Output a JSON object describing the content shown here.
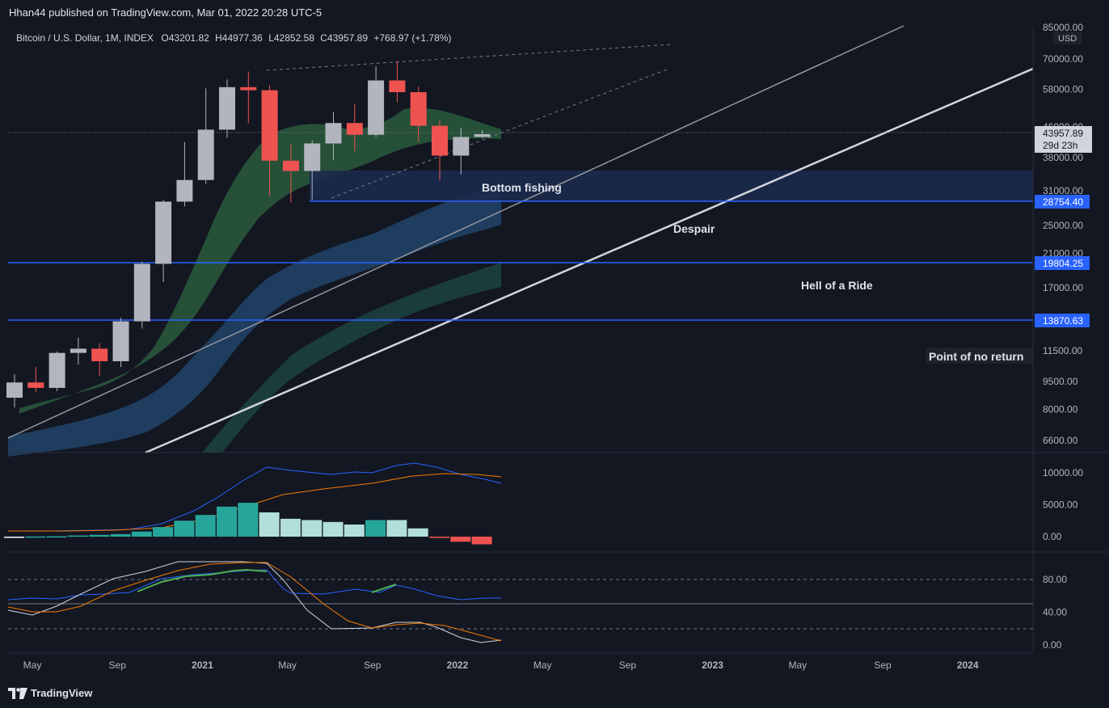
{
  "header": {
    "publisher": "Hhan44 published on TradingView.com, Mar 01, 2022 20:28 UTC-5"
  },
  "footer": {
    "logo_text": "TradingView"
  },
  "chart_data": {
    "type": "candlestick",
    "legend": {
      "symbol": "Bitcoin / U.S. Dollar, 1M, INDEX",
      "open": "O43201.82",
      "high": "H44977.36",
      "low": "L42852.58",
      "close": "C43957.89",
      "change": "+768.97 (+1.78%)"
    },
    "currency_label": "USD",
    "price_axis_ticks": [
      "85000.00",
      "70000.00",
      "58000.00",
      "46000.00",
      "38000.00",
      "31000.00",
      "25000.00",
      "21000.00",
      "17000.00",
      "11500.00",
      "9500.00",
      "8000.00",
      "6600.00"
    ],
    "price_axis_scale": "log",
    "time_axis_labels": [
      "May",
      "Sep",
      "2021",
      "May",
      "Sep",
      "2022",
      "May",
      "Sep",
      "2023",
      "May",
      "Sep",
      "2024"
    ],
    "current_price": {
      "value": "43957.89",
      "countdown": "29d 23h"
    },
    "candles": [
      {
        "month": "2020-05",
        "open": 8600,
        "high": 9950,
        "low": 8100,
        "close": 9450
      },
      {
        "month": "2020-06",
        "open": 9450,
        "high": 10400,
        "low": 8900,
        "close": 9140
      },
      {
        "month": "2020-07",
        "open": 9140,
        "high": 11450,
        "low": 8950,
        "close": 11350
      },
      {
        "month": "2020-08",
        "open": 11350,
        "high": 12480,
        "low": 10550,
        "close": 11650
      },
      {
        "month": "2020-09",
        "open": 11650,
        "high": 12050,
        "low": 9850,
        "close": 10780
      },
      {
        "month": "2020-10",
        "open": 10780,
        "high": 14100,
        "low": 10400,
        "close": 13800
      },
      {
        "month": "2020-11",
        "open": 13800,
        "high": 19950,
        "low": 13200,
        "close": 19700
      },
      {
        "month": "2020-12",
        "open": 19700,
        "high": 29300,
        "low": 17600,
        "close": 28950
      },
      {
        "month": "2021-01",
        "open": 28950,
        "high": 41900,
        "low": 28100,
        "close": 33100
      },
      {
        "month": "2021-02",
        "open": 33100,
        "high": 58350,
        "low": 32300,
        "close": 45200
      },
      {
        "month": "2021-03",
        "open": 45200,
        "high": 61700,
        "low": 43000,
        "close": 58800
      },
      {
        "month": "2021-04",
        "open": 58800,
        "high": 64800,
        "low": 47000,
        "close": 57700
      },
      {
        "month": "2021-05",
        "open": 57700,
        "high": 59600,
        "low": 30000,
        "close": 37300
      },
      {
        "month": "2021-06",
        "open": 37300,
        "high": 41300,
        "low": 28800,
        "close": 35000
      },
      {
        "month": "2021-07",
        "open": 35000,
        "high": 42300,
        "low": 29300,
        "close": 41500
      },
      {
        "month": "2021-08",
        "open": 41500,
        "high": 50500,
        "low": 37400,
        "close": 47100
      },
      {
        "month": "2021-09",
        "open": 47100,
        "high": 52900,
        "low": 39600,
        "close": 43800
      },
      {
        "month": "2021-10",
        "open": 43800,
        "high": 66900,
        "low": 43200,
        "close": 61300
      },
      {
        "month": "2021-11",
        "open": 61300,
        "high": 69000,
        "low": 53600,
        "close": 57000
      },
      {
        "month": "2021-12",
        "open": 57000,
        "high": 59000,
        "low": 42000,
        "close": 46300
      },
      {
        "month": "2022-01",
        "open": 46300,
        "high": 47900,
        "low": 33000,
        "close": 38500
      },
      {
        "month": "2022-02",
        "open": 38500,
        "high": 45800,
        "low": 34300,
        "close": 43200
      },
      {
        "month": "2022-03",
        "open": 43201.82,
        "high": 44977.36,
        "low": 42852.58,
        "close": 43957.89
      }
    ],
    "horizontal_levels": [
      {
        "value": "28754.40"
      },
      {
        "value": "19804.25"
      },
      {
        "value": "13870.63"
      }
    ],
    "zones": [
      {
        "label": "Bottom fishing"
      }
    ],
    "annotations": [
      "Despair",
      "Hell of a Ride",
      "Point of no return"
    ],
    "indicator_1": {
      "ticks": [
        "10000.00",
        "5000.00",
        "0.00"
      ],
      "histogram": [
        0,
        30,
        60,
        180,
        280,
        400,
        800,
        1500,
        2500,
        3400,
        4700,
        5300,
        3800,
        2800,
        2600,
        2300,
        1900,
        2600,
        2600,
        1300,
        -200,
        -800,
        -1200
      ]
    },
    "indicator_2": {
      "ticks": [
        "80.00",
        "40.00",
        "0.00"
      ]
    },
    "colors": {
      "background": "#131722",
      "up_candle": "#b2b5be",
      "down_candle": "#ef5350",
      "level_line": "#2962ff",
      "histogram_teal": "#26a69a",
      "histogram_light": "#b2dfdb",
      "histogram_red": "#ef5350"
    }
  }
}
